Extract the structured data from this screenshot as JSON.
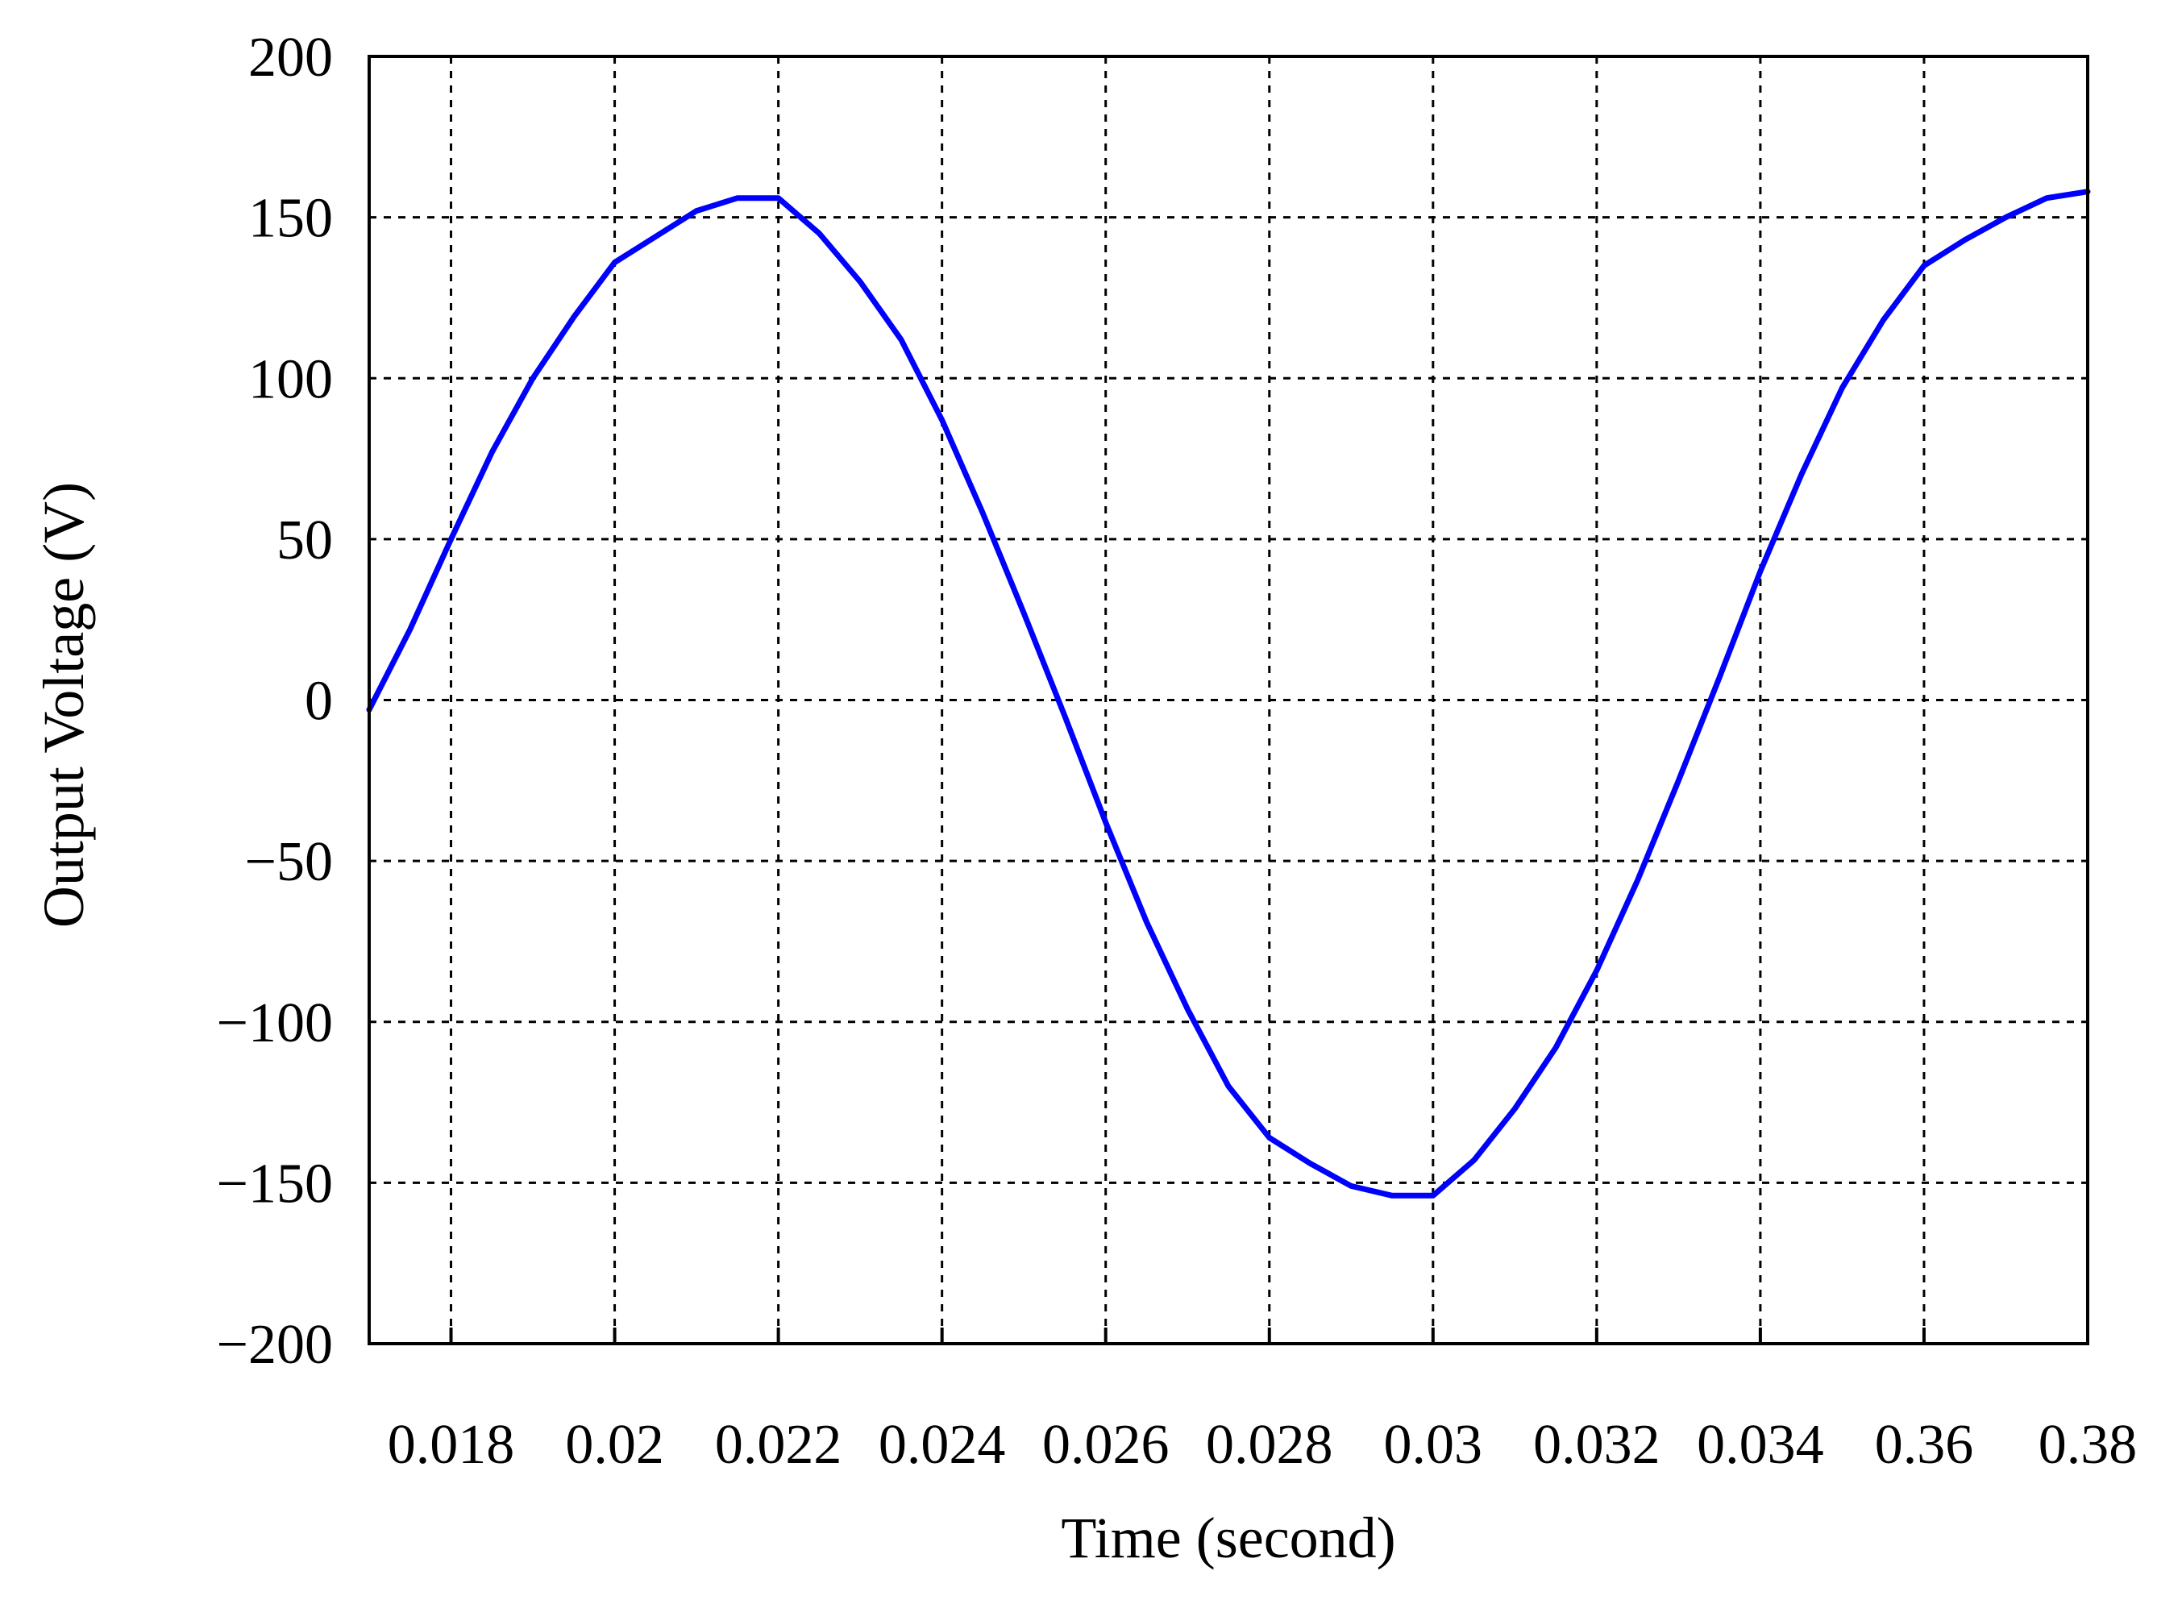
{
  "chart_data": {
    "type": "line",
    "title": "",
    "xlabel": "Time (second)",
    "ylabel": "Output Voltage (V)",
    "x_ticks": [
      "0.018",
      "0.02",
      "0.022",
      "0.024",
      "0.026",
      "0.028",
      "0.03",
      "0.032",
      "0.034",
      "0.36",
      "0.38"
    ],
    "xlim": [
      0.017,
      0.038
    ],
    "y_ticks": [
      "200",
      "150",
      "100",
      "50",
      "0",
      "−50",
      "−100",
      "−150",
      "−200"
    ],
    "ylim": [
      -200,
      200
    ],
    "grid": true,
    "line_color": "#0000ff",
    "series": [
      {
        "x": [
          0.017,
          0.0175,
          0.018,
          0.0185,
          0.019,
          0.0195,
          0.02,
          0.0205,
          0.021,
          0.0215,
          0.022,
          0.0225,
          0.023,
          0.0235,
          0.024,
          0.0245,
          0.025,
          0.0255,
          0.026,
          0.0265,
          0.027,
          0.0275,
          0.028,
          0.0285,
          0.029,
          0.0295,
          0.03,
          0.0305,
          0.031,
          0.0315,
          0.032,
          0.0325,
          0.033,
          0.0335,
          0.034,
          0.0345,
          0.035,
          0.0355,
          0.036,
          0.0365,
          0.037,
          0.0375,
          0.038
        ],
        "y": [
          -3,
          22,
          50,
          77,
          100,
          119,
          136,
          144,
          152,
          156,
          156,
          145,
          130,
          112,
          87,
          58,
          27,
          -5,
          -38,
          -69,
          -96,
          -120,
          -136,
          -144,
          -151,
          -154,
          -154,
          -143,
          -127,
          -108,
          -84,
          -56,
          -25,
          7,
          40,
          70,
          97,
          118,
          135,
          143,
          150,
          156,
          158
        ]
      }
    ]
  }
}
